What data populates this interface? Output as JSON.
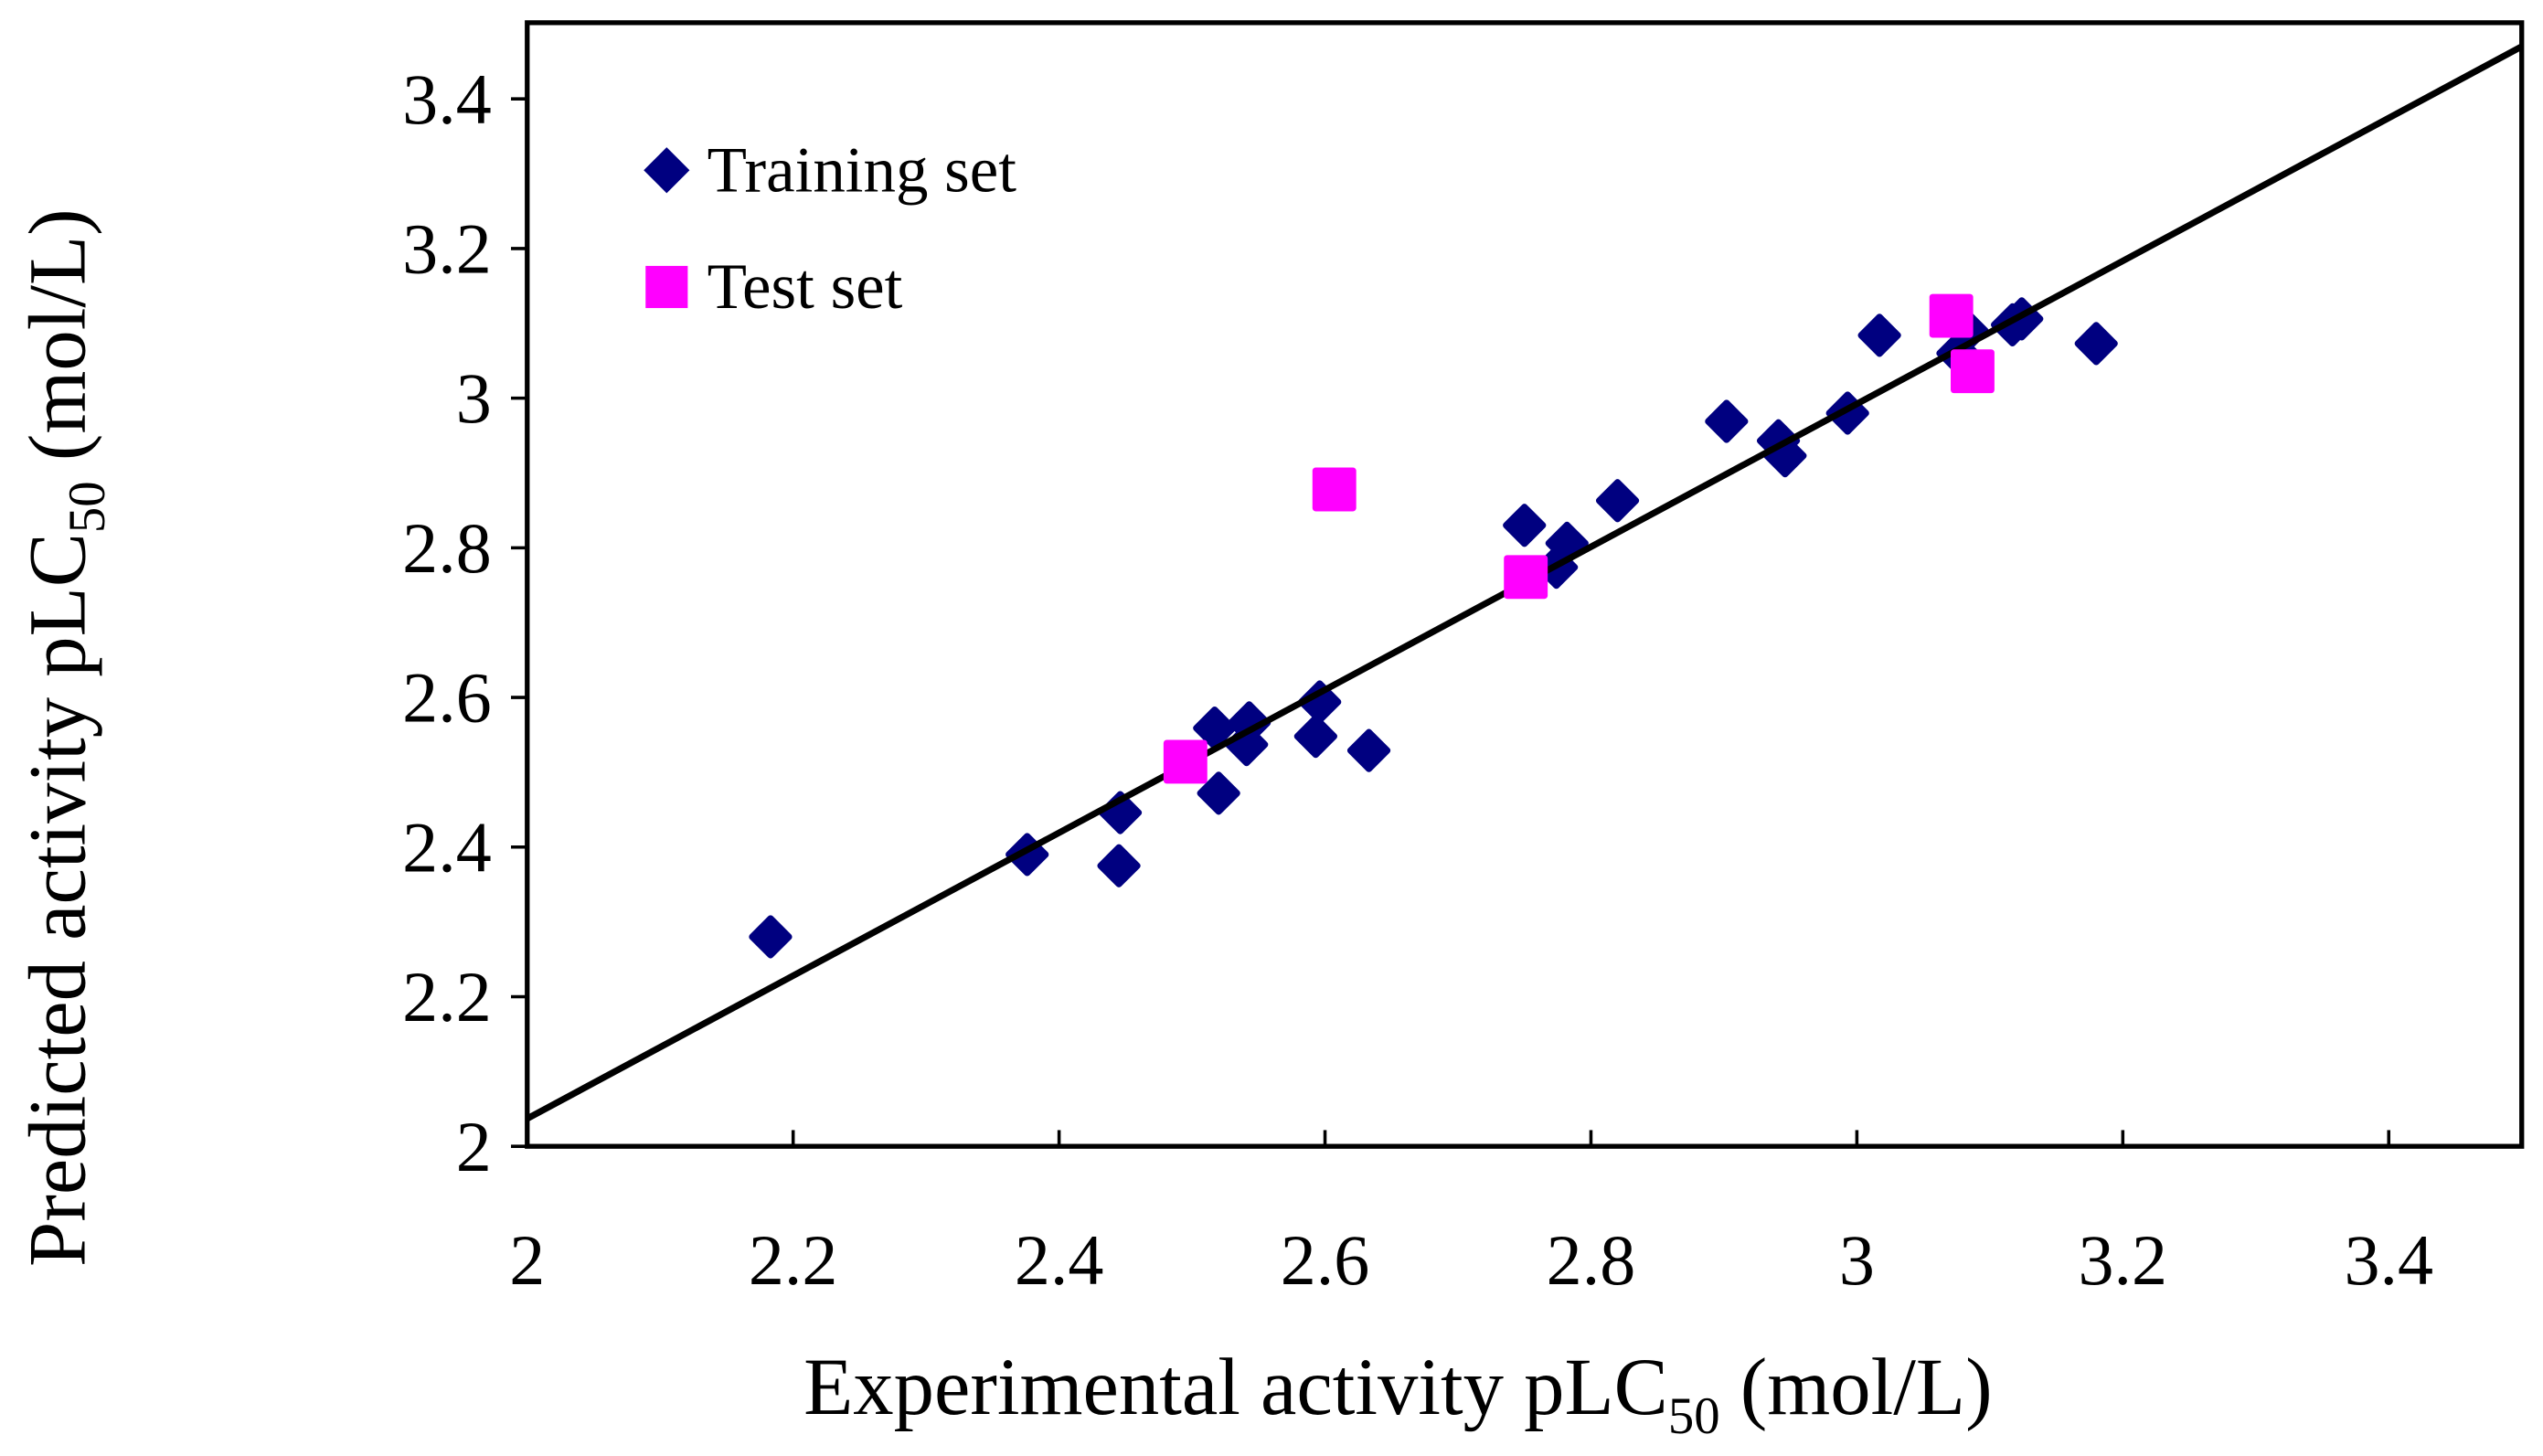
{
  "chart_data": {
    "type": "scatter",
    "title": "",
    "xlabel": "Experimental activity pLC",
    "xlabel_sub": "50",
    "xlabel_unit": " (mol/L)",
    "ylabel": "Predicted activity pLC",
    "ylabel_sub": "50",
    "ylabel_unit": " (mol/L)",
    "xlim": [
      2,
      3.5
    ],
    "ylim": [
      2,
      3.5
    ],
    "xticks": [
      "2",
      "2.2",
      "2.4",
      "2.6",
      "2.8",
      "3",
      "3.2",
      "3.4"
    ],
    "yticks": [
      "2",
      "2.2",
      "2.4",
      "2.6",
      "2.8",
      "3",
      "3.2",
      "3.4"
    ],
    "xtick_values": [
      2,
      2.2,
      2.4,
      2.6,
      2.8,
      3,
      3.2,
      3.4
    ],
    "ytick_values": [
      2,
      2.2,
      2.4,
      2.6,
      2.8,
      3,
      3.2,
      3.4
    ],
    "grid": false,
    "legend_position": "top-left",
    "fit_line": {
      "x": [
        2,
        3.5
      ],
      "y": [
        2.037,
        3.47
      ],
      "color": "#000000"
    },
    "series": [
      {
        "name": "Training set",
        "marker": "diamond",
        "color": "#000080",
        "points": [
          [
            2.183,
            2.28
          ],
          [
            2.376,
            2.39
          ],
          [
            2.446,
            2.446
          ],
          [
            2.445,
            2.375
          ],
          [
            2.517,
            2.559
          ],
          [
            2.52,
            2.472
          ],
          [
            2.543,
            2.566
          ],
          [
            2.541,
            2.537
          ],
          [
            2.593,
            2.548
          ],
          [
            2.596,
            2.594
          ],
          [
            2.633,
            2.529
          ],
          [
            2.75,
            2.83
          ],
          [
            2.774,
            2.774
          ],
          [
            2.782,
            2.806
          ],
          [
            2.82,
            2.863
          ],
          [
            2.902,
            2.969
          ],
          [
            2.941,
            2.943
          ],
          [
            2.946,
            2.923
          ],
          [
            2.993,
            2.98
          ],
          [
            3.017,
            3.084
          ],
          [
            3.076,
            3.06
          ],
          [
            3.083,
            3.09
          ],
          [
            3.117,
            3.098
          ],
          [
            3.124,
            3.106
          ],
          [
            3.18,
            3.073
          ]
        ]
      },
      {
        "name": "Test set",
        "marker": "square",
        "color": "#FF00FF",
        "points": [
          [
            2.495,
            2.514
          ],
          [
            2.607,
            2.878
          ],
          [
            2.751,
            2.761
          ],
          [
            3.071,
            3.11
          ],
          [
            3.087,
            3.036
          ]
        ]
      }
    ]
  }
}
